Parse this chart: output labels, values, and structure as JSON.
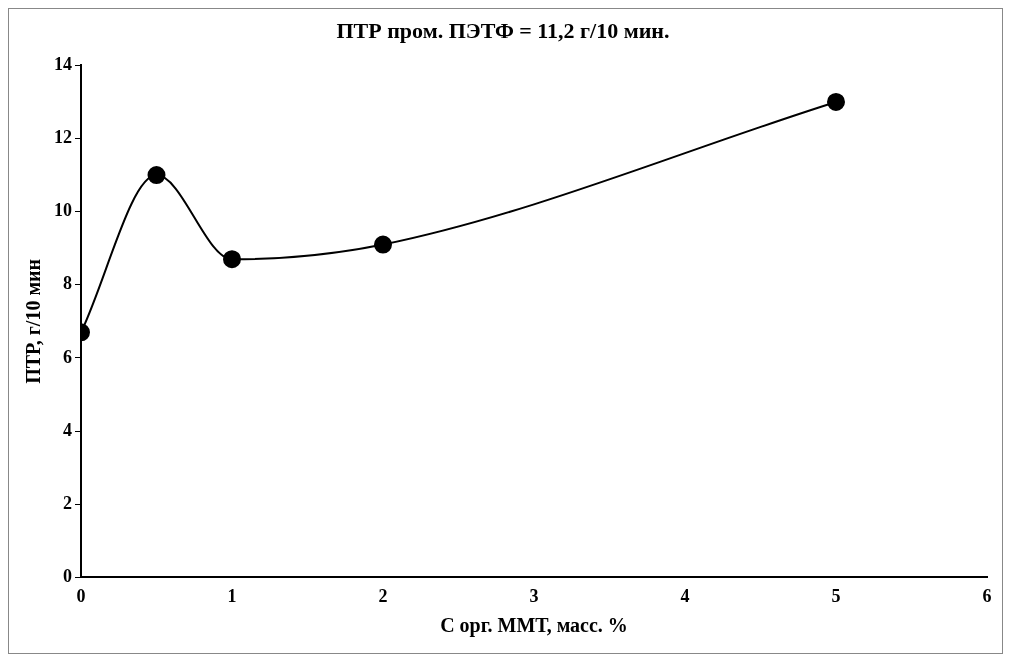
{
  "chart_data": {
    "type": "line",
    "title": "ПТР пром. ПЭТФ = 11,2 г/10 мин.",
    "xlabel": "С орг. ММТ, масс. %",
    "ylabel": "ПТР, г/10 мин",
    "x": [
      0,
      0.5,
      1,
      2,
      5
    ],
    "series": [
      {
        "color": "#000000",
        "values": [
          6.7,
          11,
          8.7,
          9.1,
          13
        ]
      }
    ],
    "xlim": [
      0,
      6
    ],
    "xticks": [
      0,
      1,
      2,
      3,
      4,
      5,
      6
    ],
    "ylim": [
      0,
      14
    ],
    "yticks": [
      0,
      2,
      4,
      6,
      8,
      10,
      12,
      14
    ],
    "grid": false,
    "legend": false,
    "marker": "circle",
    "line_style": "solid"
  }
}
